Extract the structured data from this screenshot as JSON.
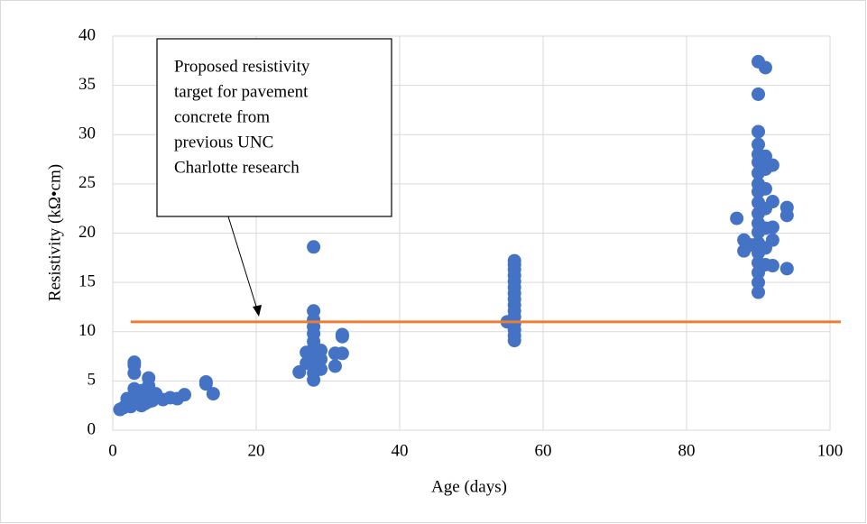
{
  "chart_data": {
    "type": "scatter",
    "x_label": "Age (days)",
    "y_label": "Resistivity (kΩ•cm)",
    "annotation_lines": [
      "Proposed resistivity",
      "target for pavement",
      "concrete from",
      "previous UNC",
      "Charlotte research"
    ],
    "color": "#4472c4",
    "x": [
      1,
      1.5,
      2,
      2,
      2.5,
      3,
      3,
      3,
      3,
      3,
      3,
      3.5,
      4,
      4,
      4,
      4.5,
      5,
      5,
      5,
      5,
      5.5,
      6,
      6,
      7,
      8,
      9,
      10,
      13,
      13,
      14,
      26,
      27,
      27,
      28,
      28,
      28,
      28,
      28,
      28,
      28,
      28,
      28,
      28,
      28,
      28.5,
      29,
      29,
      29,
      31,
      31,
      32,
      32,
      32,
      55,
      56,
      56,
      56,
      56,
      56,
      56,
      56,
      56,
      56,
      56,
      56,
      56,
      56,
      56,
      56,
      87,
      88,
      88,
      89,
      90,
      90,
      90,
      90,
      90,
      90,
      90,
      90,
      90,
      90,
      90,
      90,
      90,
      90,
      90,
      90,
      90,
      90,
      90,
      91,
      91,
      91,
      91,
      91,
      91,
      91,
      91,
      92,
      92,
      92,
      92,
      92,
      94,
      94,
      94
    ],
    "values": [
      2.1,
      2.3,
      2.6,
      3.2,
      2.4,
      2.8,
      3.5,
      4.2,
      5.8,
      6.9,
      6.6,
      3.0,
      2.5,
      3.3,
      4.0,
      2.7,
      3.2,
      4.5,
      5.3,
      2.9,
      3.0,
      3.3,
      3.7,
      3.1,
      3.3,
      3.2,
      3.6,
      4.9,
      4.7,
      3.7,
      5.9,
      7.9,
      6.8,
      18.6,
      12.1,
      11.2,
      10.5,
      9.8,
      9.0,
      8.3,
      7.5,
      6.6,
      5.8,
      5.1,
      7.0,
      6.2,
      8.1,
      7.2,
      6.5,
      7.8,
      7.8,
      9.7,
      9.5,
      11.0,
      9.1,
      9.6,
      10.2,
      10.8,
      11.5,
      12.1,
      12.7,
      13.3,
      13.9,
      14.5,
      15.1,
      15.7,
      16.3,
      16.8,
      17.2,
      21.5,
      19.3,
      18.2,
      18.8,
      37.4,
      34.1,
      30.3,
      29.0,
      28.0,
      27.2,
      26.1,
      25.0,
      24.2,
      23.1,
      22.0,
      21.0,
      20.1,
      19.0,
      18.0,
      17.0,
      16.0,
      15.0,
      14.0,
      36.8,
      27.8,
      26.5,
      24.5,
      22.5,
      20.5,
      18.5,
      16.8,
      26.9,
      23.2,
      20.6,
      19.3,
      16.7,
      22.6,
      21.8,
      16.4
    ],
    "reference_line": {
      "y": 11,
      "x": [
        2.5,
        101.5
      ],
      "color": "#ed7d31"
    },
    "xlim": [
      0,
      100
    ],
    "xticks": [
      0,
      20,
      40,
      60,
      80,
      100
    ],
    "ylim": [
      0,
      40
    ],
    "yticks": [
      0,
      5,
      10,
      15,
      20,
      25,
      30,
      35,
      40
    ],
    "grid": true
  }
}
